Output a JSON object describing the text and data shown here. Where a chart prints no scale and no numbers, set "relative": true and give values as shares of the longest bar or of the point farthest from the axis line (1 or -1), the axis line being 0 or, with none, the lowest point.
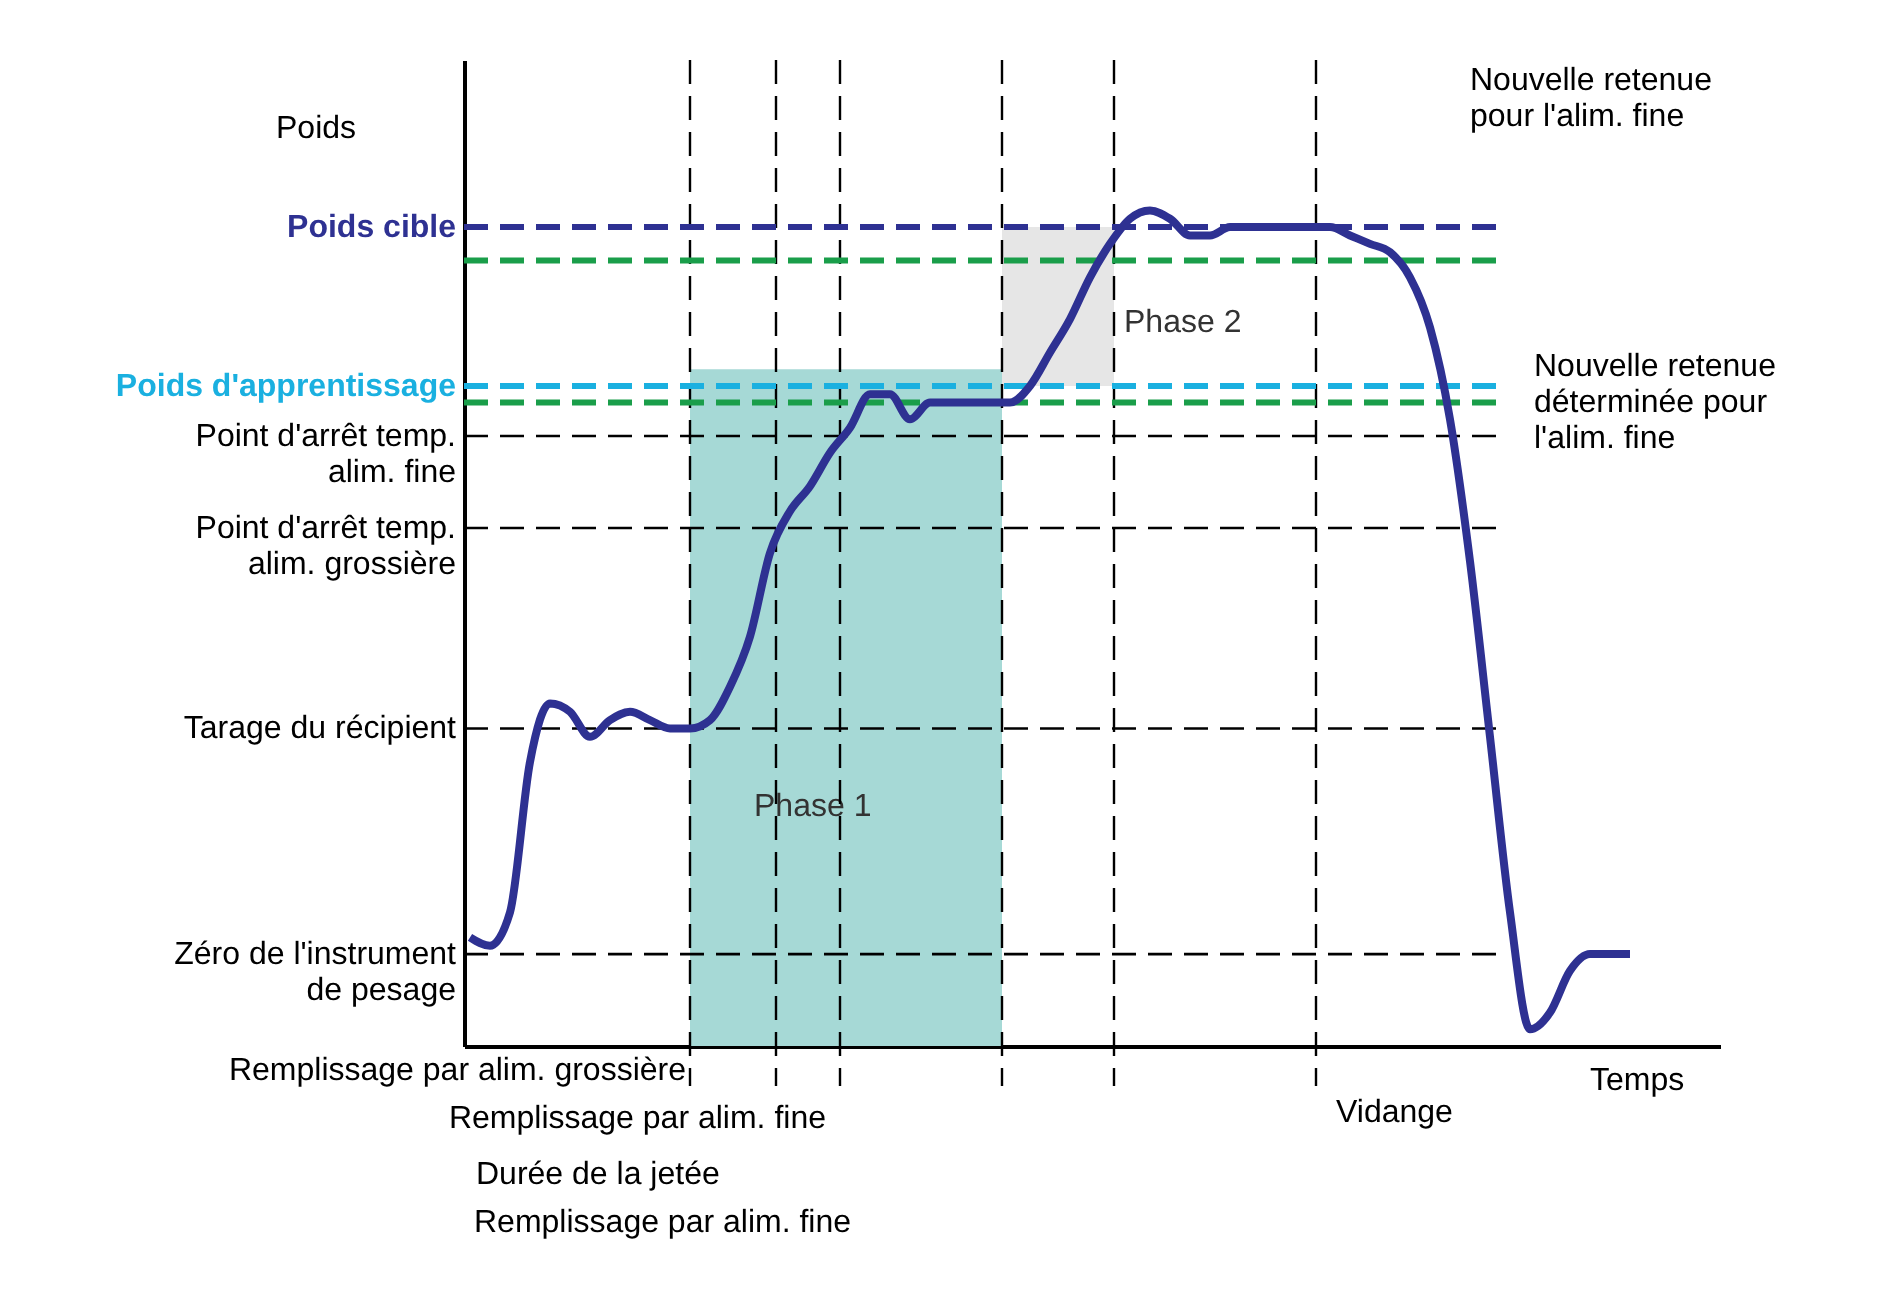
{
  "chart_data": {
    "type": "line",
    "relative": true,
    "xlabel": "Temps",
    "ylabel": "Poids",
    "categories": [
      null,
      null,
      null,
      null,
      null,
      null,
      null,
      null,
      null,
      null,
      null,
      null,
      null,
      null,
      null,
      null,
      null,
      null,
      null,
      null,
      null,
      null,
      null,
      null,
      null,
      null,
      null,
      null,
      null,
      null,
      null,
      null,
      null,
      null,
      null,
      null,
      null,
      null,
      null,
      null,
      null,
      null,
      null,
      null,
      null,
      null,
      null,
      null,
      null,
      null,
      null,
      null,
      null,
      null,
      null,
      null,
      null,
      null,
      null
    ],
    "series": [
      {
        "color": "#2e3192",
        "values": [
          0.13,
          0.12,
          0.16,
          0.34,
          0.41,
          0.4,
          0.37,
          0.39,
          0.4,
          0.39,
          0.38,
          0.38,
          0.39,
          0.43,
          0.49,
          0.59,
          0.64,
          0.67,
          0.71,
          0.74,
          0.78,
          0.78,
          0.75,
          0.77,
          0.77,
          0.77,
          0.77,
          0.77,
          0.79,
          0.83,
          0.87,
          0.92,
          0.96,
          0.99,
          1,
          0.99,
          0.97,
          0.97,
          0.98,
          0.98,
          0.98,
          0.98,
          0.98,
          0.98,
          0.97,
          0.96,
          0.95,
          0.92,
          0.86,
          0.75,
          0.58,
          0.37,
          0.16,
          0.02,
          0.04,
          0.09,
          0.11,
          0.11,
          0.11
        ]
      }
    ],
    "ref_lines": [
      {
        "axis": "y",
        "value": 0.98,
        "label": "Poids cible",
        "color": "#2e3192",
        "line_style": "dashed"
      },
      {
        "axis": "y",
        "value": 0.94,
        "color": "#1a9e4a",
        "line_style": "dashed"
      },
      {
        "axis": "y",
        "value": 0.79,
        "label": "Poids d'apprentissage",
        "color": "#1ab0e0",
        "line_style": "dashed"
      },
      {
        "axis": "y",
        "value": 0.77,
        "color": "#1a9e4a",
        "line_style": "dashed"
      },
      {
        "axis": "y",
        "value": 0.73,
        "label": "Point d'arrêt temp.\nalim. fine",
        "color": "#000000",
        "line_style": "dashed"
      },
      {
        "axis": "y",
        "value": 0.62,
        "label": "Point d'arrêt temp.\nalim. grossière",
        "color": "#000000",
        "line_style": "dashed"
      },
      {
        "axis": "y",
        "value": 0.38,
        "label": "Tarage du récipient",
        "color": "#000000",
        "line_style": "dashed"
      },
      {
        "axis": "y",
        "value": 0.11,
        "label": "Zéro de l'instrument\nde pesage",
        "color": "#000000",
        "line_style": "dashed"
      }
    ],
    "bands": [
      {
        "axis": "y",
        "from": 0,
        "to": 0.81,
        "label": "Phase 1",
        "color": "#a6d9d6"
      },
      {
        "axis": "y",
        "from": 0.79,
        "to": 0.98,
        "label": "Phase 2",
        "color": "#e6e6e6"
      }
    ],
    "annotations": [
      "Nouvelle retenue\npour l'alim. fine",
      "Nouvelle retenue\ndéterminée pour\nl'alim. fine",
      "Remplissage par alim. grossière",
      "Remplissage par alim. fine",
      "Durée de la jetée",
      "Remplissage par alim. fine",
      "Vidange"
    ],
    "line_style": "solid",
    "marker": "none"
  }
}
